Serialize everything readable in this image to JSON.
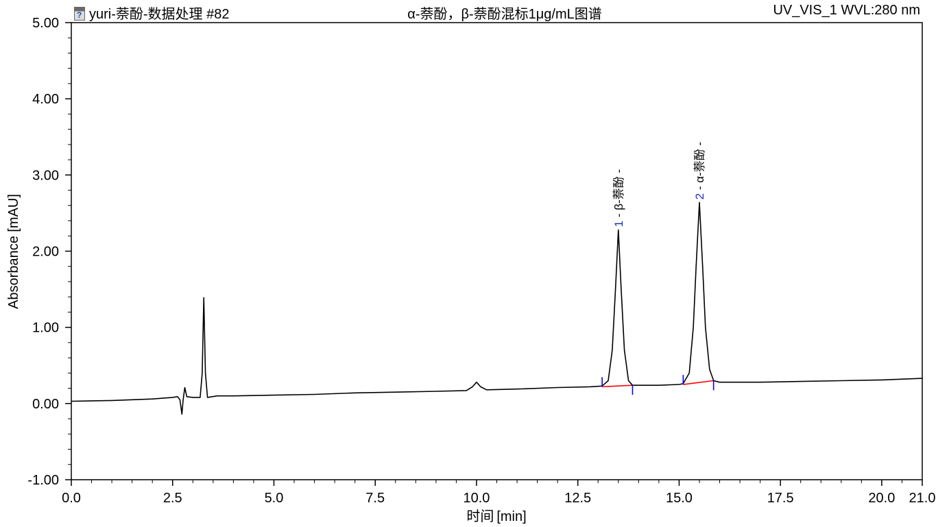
{
  "header": {
    "left_title": "yuri-萘酚-数据处理 #82",
    "left_icon": "sequence-document-icon",
    "center_title": "α-萘酚，β-萘酚混标1μg/mL图谱",
    "right_info": "UV_VIS_1 WVL:280 nm"
  },
  "chart_data": {
    "type": "line",
    "title": "α-萘酚，β-萘酚混标1μg/mL图谱",
    "xlabel_prefix": "时间",
    "xlabel_unit": "[min]",
    "ylabel": "Absorbance [mAU]",
    "xlim": [
      0,
      21
    ],
    "ylim": [
      -1,
      5
    ],
    "x_ticks": [
      0,
      2.5,
      5,
      7.5,
      10,
      12.5,
      15,
      17.5,
      20,
      21
    ],
    "x_tick_labels": [
      "0.0",
      "2.5",
      "5.0",
      "7.5",
      "10.0",
      "12.5",
      "15.0",
      "17.5",
      "20.0",
      "21.0"
    ],
    "y_ticks": [
      5,
      4,
      3,
      2,
      1,
      0,
      -1
    ],
    "y_tick_labels": [
      "5.00",
      "4.00",
      "3.00",
      "2.00",
      "1.00",
      "0.00",
      "-1.00"
    ],
    "grid": false,
    "series": [
      {
        "color": "#000000",
        "points": [
          [
            0,
            0.03
          ],
          [
            1,
            0.04
          ],
          [
            2,
            0.06
          ],
          [
            2.5,
            0.08
          ],
          [
            2.62,
            0.09
          ],
          [
            2.68,
            0.05
          ],
          [
            2.73,
            -0.14
          ],
          [
            2.76,
            0.05
          ],
          [
            2.8,
            0.21
          ],
          [
            2.85,
            0.09
          ],
          [
            3.0,
            0.08
          ],
          [
            3.18,
            0.08
          ],
          [
            3.23,
            0.4
          ],
          [
            3.27,
            1.39
          ],
          [
            3.31,
            0.4
          ],
          [
            3.36,
            0.08
          ],
          [
            3.6,
            0.1
          ],
          [
            4,
            0.1
          ],
          [
            5,
            0.11
          ],
          [
            6,
            0.12
          ],
          [
            7,
            0.14
          ],
          [
            8,
            0.15
          ],
          [
            9,
            0.16
          ],
          [
            9.75,
            0.17
          ],
          [
            9.9,
            0.22
          ],
          [
            10.0,
            0.28
          ],
          [
            10.1,
            0.22
          ],
          [
            10.25,
            0.18
          ],
          [
            11,
            0.19
          ],
          [
            12,
            0.21
          ],
          [
            12.8,
            0.22
          ],
          [
            13.1,
            0.23
          ],
          [
            13.25,
            0.3
          ],
          [
            13.35,
            0.7
          ],
          [
            13.43,
            1.5
          ],
          [
            13.5,
            2.28
          ],
          [
            13.57,
            1.5
          ],
          [
            13.65,
            0.7
          ],
          [
            13.75,
            0.3
          ],
          [
            13.85,
            0.24
          ],
          [
            14.5,
            0.24
          ],
          [
            15.0,
            0.25
          ],
          [
            15.1,
            0.26
          ],
          [
            15.25,
            0.4
          ],
          [
            15.35,
            1.0
          ],
          [
            15.42,
            1.8
          ],
          [
            15.5,
            2.64
          ],
          [
            15.58,
            1.8
          ],
          [
            15.65,
            1.0
          ],
          [
            15.75,
            0.45
          ],
          [
            15.85,
            0.3
          ],
          [
            16,
            0.28
          ],
          [
            17,
            0.28
          ],
          [
            18,
            0.29
          ],
          [
            19,
            0.3
          ],
          [
            20,
            0.31
          ],
          [
            21,
            0.33
          ]
        ]
      }
    ],
    "baselines": [
      {
        "color": "#ff0000",
        "from": [
          13.1,
          0.22
        ],
        "to": [
          13.85,
          0.24
        ]
      },
      {
        "color": "#ff0000",
        "from": [
          15.1,
          0.25
        ],
        "to": [
          15.85,
          0.3
        ]
      }
    ],
    "peak_delimiters": [
      {
        "color": "#0000ff",
        "x": 13.1,
        "y": 0.22,
        "direction": "up"
      },
      {
        "color": "#0000ff",
        "x": 13.85,
        "y": 0.24,
        "direction": "down"
      },
      {
        "color": "#0000ff",
        "x": 15.1,
        "y": 0.25,
        "direction": "up"
      },
      {
        "color": "#0000ff",
        "x": 15.85,
        "y": 0.3,
        "direction": "down"
      }
    ],
    "peaks": [
      {
        "number": "1",
        "label": "1 - β-萘酚 -",
        "retention_time": 13.5,
        "height": 2.28
      },
      {
        "number": "2",
        "label": "2 - α-萘酚 -",
        "retention_time": 15.5,
        "height": 2.64
      }
    ]
  }
}
